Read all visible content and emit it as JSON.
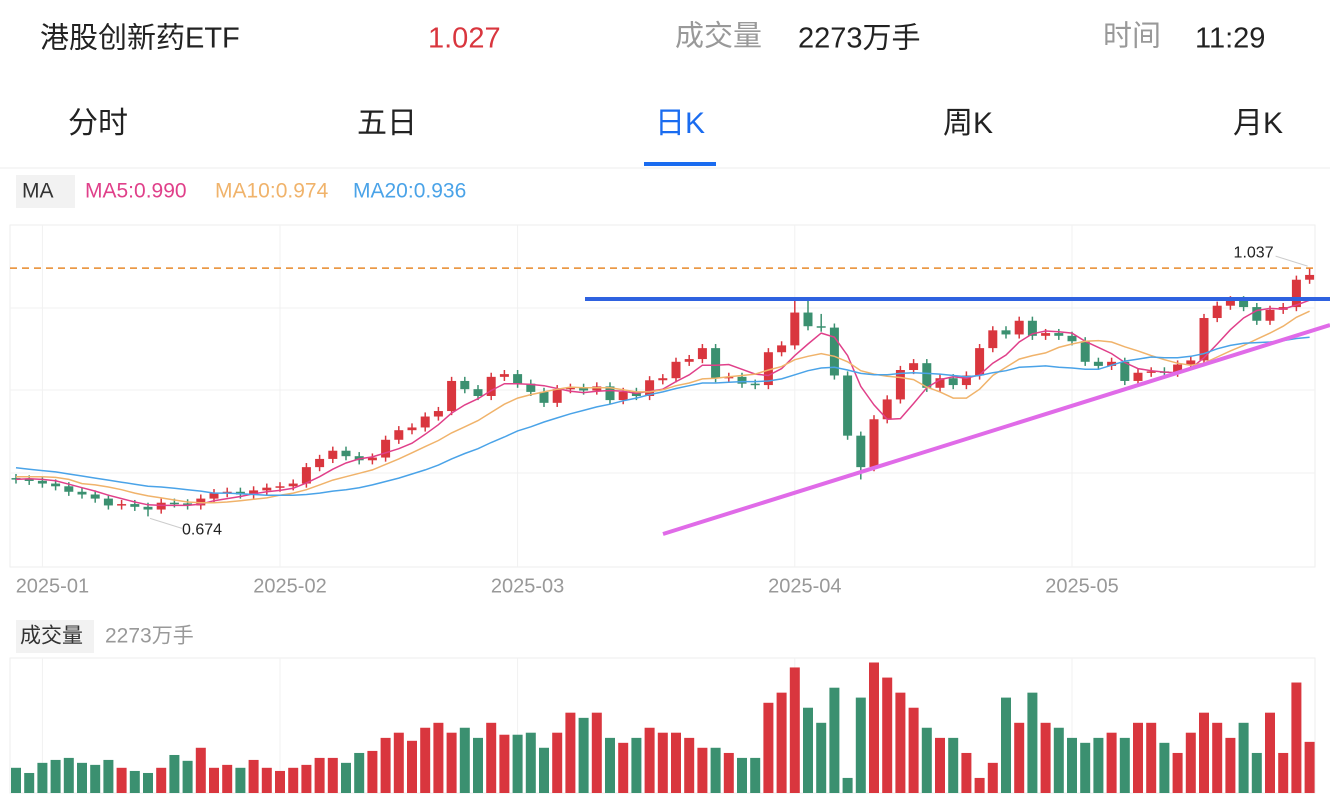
{
  "header": {
    "name": "港股创新药ETF",
    "price": "1.027",
    "volume_label": "成交量",
    "volume": "2273万手",
    "time_label": "时间",
    "time": "11:29"
  },
  "tabs": [
    "分时",
    "五日",
    "日K",
    "周K",
    "月K"
  ],
  "chart_data": [
    {
      "type": "candlestick",
      "legend_label": "MA",
      "categories": [
        null,
        null,
        "2025-01",
        null,
        null,
        null,
        null,
        null,
        null,
        null,
        null,
        null,
        null,
        null,
        null,
        null,
        null,
        null,
        null,
        null,
        "2025-02",
        null,
        null,
        null,
        null,
        null,
        null,
        null,
        null,
        null,
        null,
        null,
        null,
        null,
        null,
        null,
        null,
        null,
        "2025-03",
        null,
        null,
        null,
        null,
        null,
        null,
        null,
        null,
        null,
        null,
        null,
        null,
        null,
        null,
        null,
        null,
        null,
        null,
        null,
        null,
        "2025-04",
        null,
        null,
        null,
        null,
        null,
        null,
        null,
        null,
        null,
        null,
        null,
        null,
        null,
        null,
        null,
        null,
        null,
        null,
        null,
        null,
        "2025-05",
        null,
        null,
        null,
        null,
        null,
        null,
        null,
        null,
        null,
        null,
        null,
        null,
        null,
        null,
        null,
        null,
        null,
        null
      ],
      "open": [
        0.73,
        0.728,
        0.726,
        0.722,
        0.718,
        0.71,
        0.706,
        0.7,
        0.69,
        0.692,
        0.688,
        0.684,
        0.694,
        0.693,
        0.69,
        0.7,
        0.708,
        0.71,
        0.706,
        0.712,
        0.716,
        0.718,
        0.722,
        0.746,
        0.758,
        0.77,
        0.762,
        0.756,
        0.76,
        0.786,
        0.8,
        0.804,
        0.82,
        0.828,
        0.872,
        0.86,
        0.85,
        0.878,
        0.882,
        0.868,
        0.856,
        0.84,
        0.86,
        0.862,
        0.858,
        0.864,
        0.844,
        0.856,
        0.85,
        0.873,
        0.876,
        0.9,
        0.904,
        0.92,
        0.876,
        0.878,
        0.868,
        0.866,
        0.914,
        0.924,
        0.972,
        0.952,
        0.95,
        0.88,
        0.792,
        0.746,
        0.816,
        0.845,
        0.888,
        0.898,
        0.862,
        0.876,
        0.866,
        0.88,
        0.92,
        0.946,
        0.94,
        0.96,
        0.938,
        0.942,
        0.938,
        0.93,
        0.9,
        0.894,
        0.9,
        0.872,
        0.884,
        0.886,
        0.884,
        0.896,
        0.902,
        0.964,
        0.982,
        0.99,
        0.98,
        0.96,
        0.976,
        0.98,
        1.02
      ],
      "high": [
        0.736,
        0.734,
        0.732,
        0.728,
        0.724,
        0.716,
        0.712,
        0.706,
        0.698,
        0.698,
        0.694,
        0.7,
        0.7,
        0.699,
        0.706,
        0.714,
        0.716,
        0.716,
        0.718,
        0.722,
        0.724,
        0.728,
        0.752,
        0.764,
        0.776,
        0.776,
        0.768,
        0.766,
        0.792,
        0.806,
        0.81,
        0.826,
        0.834,
        0.878,
        0.878,
        0.866,
        0.884,
        0.888,
        0.888,
        0.874,
        0.862,
        0.866,
        0.868,
        0.868,
        0.87,
        0.87,
        0.862,
        0.862,
        0.879,
        0.882,
        0.906,
        0.91,
        0.926,
        0.926,
        0.884,
        0.884,
        0.874,
        0.92,
        0.93,
        0.992,
        0.99,
        0.97,
        0.956,
        0.886,
        0.798,
        0.822,
        0.851,
        0.894,
        0.904,
        0.904,
        0.882,
        0.882,
        0.886,
        0.926,
        0.952,
        0.952,
        0.966,
        0.966,
        0.948,
        0.948,
        0.944,
        0.936,
        0.906,
        0.906,
        0.906,
        0.89,
        0.892,
        0.892,
        0.902,
        0.908,
        0.97,
        0.988,
        0.996,
        0.996,
        0.986,
        0.982,
        0.986,
        1.026,
        1.037
      ],
      "low": [
        0.722,
        0.72,
        0.716,
        0.712,
        0.704,
        0.7,
        0.694,
        0.684,
        0.684,
        0.682,
        0.674,
        0.678,
        0.687,
        0.684,
        0.684,
        0.694,
        0.702,
        0.7,
        0.7,
        0.706,
        0.71,
        0.712,
        0.716,
        0.74,
        0.752,
        0.756,
        0.75,
        0.75,
        0.754,
        0.78,
        0.794,
        0.798,
        0.814,
        0.822,
        0.854,
        0.844,
        0.844,
        0.872,
        0.862,
        0.85,
        0.834,
        0.834,
        0.854,
        0.852,
        0.852,
        0.838,
        0.838,
        0.844,
        0.844,
        0.867,
        0.87,
        0.894,
        0.898,
        0.87,
        0.87,
        0.862,
        0.86,
        0.86,
        0.908,
        0.918,
        0.946,
        0.944,
        0.874,
        0.786,
        0.728,
        0.74,
        0.81,
        0.839,
        0.882,
        0.856,
        0.856,
        0.86,
        0.86,
        0.874,
        0.914,
        0.934,
        0.934,
        0.932,
        0.932,
        0.932,
        0.924,
        0.894,
        0.888,
        0.888,
        0.866,
        0.866,
        0.878,
        0.878,
        0.878,
        0.89,
        0.896,
        0.958,
        0.976,
        0.974,
        0.954,
        0.954,
        0.97,
        0.974,
        1.014
      ],
      "close": [
        0.728,
        0.726,
        0.722,
        0.718,
        0.71,
        0.706,
        0.7,
        0.69,
        0.692,
        0.688,
        0.684,
        0.694,
        0.693,
        0.69,
        0.7,
        0.708,
        0.71,
        0.706,
        0.712,
        0.716,
        0.718,
        0.722,
        0.746,
        0.758,
        0.77,
        0.762,
        0.756,
        0.76,
        0.786,
        0.8,
        0.804,
        0.82,
        0.828,
        0.872,
        0.86,
        0.85,
        0.878,
        0.882,
        0.868,
        0.856,
        0.84,
        0.86,
        0.862,
        0.858,
        0.864,
        0.844,
        0.856,
        0.85,
        0.873,
        0.876,
        0.9,
        0.904,
        0.92,
        0.876,
        0.878,
        0.868,
        0.866,
        0.914,
        0.924,
        0.972,
        0.952,
        0.95,
        0.88,
        0.792,
        0.746,
        0.816,
        0.845,
        0.888,
        0.898,
        0.862,
        0.876,
        0.866,
        0.88,
        0.92,
        0.946,
        0.94,
        0.96,
        0.938,
        0.942,
        0.938,
        0.93,
        0.9,
        0.894,
        0.9,
        0.872,
        0.884,
        0.886,
        0.884,
        0.896,
        0.902,
        0.964,
        0.982,
        0.99,
        0.98,
        0.96,
        0.976,
        0.98,
        1.02,
        1.027
      ],
      "up_color": "#d9363e",
      "down_color": "#3b9070",
      "series": [
        {
          "name": "MA5:0.990",
          "color": "#e0408a",
          "values": [
            0.728,
            0.729,
            0.728,
            0.726,
            0.721,
            0.716,
            0.711,
            0.705,
            0.7,
            0.695,
            0.691,
            0.69,
            0.69,
            0.69,
            0.692,
            0.697,
            0.7,
            0.703,
            0.707,
            0.71,
            0.712,
            0.715,
            0.723,
            0.732,
            0.743,
            0.752,
            0.758,
            0.761,
            0.767,
            0.773,
            0.781,
            0.794,
            0.808,
            0.825,
            0.837,
            0.846,
            0.858,
            0.868,
            0.868,
            0.867,
            0.865,
            0.861,
            0.857,
            0.855,
            0.857,
            0.858,
            0.857,
            0.854,
            0.857,
            0.86,
            0.871,
            0.881,
            0.895,
            0.895,
            0.896,
            0.889,
            0.882,
            0.88,
            0.89,
            0.909,
            0.926,
            0.942,
            0.936,
            0.909,
            0.864,
            0.837,
            0.816,
            0.817,
            0.839,
            0.862,
            0.874,
            0.878,
            0.876,
            0.881,
            0.898,
            0.91,
            0.929,
            0.941,
            0.945,
            0.944,
            0.942,
            0.93,
            0.921,
            0.912,
            0.899,
            0.89,
            0.887,
            0.885,
            0.884,
            0.89,
            0.906,
            0.926,
            0.947,
            0.964,
            0.975,
            0.978,
            0.977,
            0.983,
            0.99
          ]
        },
        {
          "name": "MA10:0.974",
          "color": "#f0b36b",
          "values": [
            0.732,
            0.732,
            0.732,
            0.731,
            0.728,
            0.722,
            0.72,
            0.717,
            0.713,
            0.708,
            0.704,
            0.701,
            0.698,
            0.695,
            0.694,
            0.694,
            0.695,
            0.697,
            0.699,
            0.701,
            0.705,
            0.708,
            0.713,
            0.72,
            0.727,
            0.732,
            0.737,
            0.742,
            0.75,
            0.758,
            0.767,
            0.776,
            0.785,
            0.796,
            0.805,
            0.814,
            0.826,
            0.838,
            0.847,
            0.852,
            0.856,
            0.86,
            0.863,
            0.862,
            0.862,
            0.862,
            0.859,
            0.856,
            0.856,
            0.859,
            0.865,
            0.869,
            0.875,
            0.876,
            0.878,
            0.88,
            0.882,
            0.888,
            0.893,
            0.903,
            0.908,
            0.912,
            0.908,
            0.9,
            0.887,
            0.882,
            0.879,
            0.877,
            0.874,
            0.863,
            0.856,
            0.847,
            0.847,
            0.86,
            0.88,
            0.892,
            0.904,
            0.909,
            0.913,
            0.921,
            0.926,
            0.93,
            0.931,
            0.929,
            0.922,
            0.916,
            0.909,
            0.903,
            0.898,
            0.895,
            0.898,
            0.907,
            0.916,
            0.924,
            0.933,
            0.942,
            0.952,
            0.965,
            0.974
          ]
        },
        {
          "name": "MA20:0.936",
          "color": "#4aa3e8",
          "values": [
            0.745,
            0.743,
            0.741,
            0.739,
            0.736,
            0.733,
            0.73,
            0.727,
            0.724,
            0.721,
            0.718,
            0.717,
            0.715,
            0.713,
            0.711,
            0.708,
            0.708,
            0.707,
            0.706,
            0.705,
            0.705,
            0.705,
            0.706,
            0.708,
            0.711,
            0.713,
            0.716,
            0.72,
            0.725,
            0.73,
            0.736,
            0.742,
            0.749,
            0.758,
            0.766,
            0.773,
            0.782,
            0.79,
            0.799,
            0.805,
            0.812,
            0.818,
            0.824,
            0.829,
            0.834,
            0.838,
            0.843,
            0.847,
            0.852,
            0.856,
            0.861,
            0.865,
            0.869,
            0.869,
            0.87,
            0.871,
            0.871,
            0.872,
            0.875,
            0.881,
            0.887,
            0.891,
            0.892,
            0.888,
            0.883,
            0.881,
            0.881,
            0.883,
            0.884,
            0.883,
            0.882,
            0.88,
            0.878,
            0.88,
            0.884,
            0.887,
            0.892,
            0.893,
            0.894,
            0.892,
            0.891,
            0.889,
            0.889,
            0.895,
            0.901,
            0.904,
            0.907,
            0.906,
            0.906,
            0.908,
            0.912,
            0.919,
            0.924,
            0.927,
            0.928,
            0.929,
            0.931,
            0.934,
            0.936
          ]
        }
      ],
      "high_label": "1.037",
      "low_label": "0.674",
      "ylim": [
        0.6,
        1.1
      ]
    },
    {
      "type": "bar",
      "title": "成交量",
      "subtitle": "2273万手",
      "values": [
        1120,
        890,
        1340,
        1470,
        1560,
        1340,
        1250,
        1470,
        1120,
        980,
        890,
        1120,
        1690,
        1430,
        2010,
        1120,
        1250,
        1120,
        1470,
        1120,
        980,
        1120,
        1250,
        1560,
        1560,
        1340,
        1780,
        1870,
        2450,
        2680,
        2320,
        2900,
        3120,
        2680,
        2900,
        2450,
        3120,
        2590,
        2590,
        2680,
        2010,
        2680,
        3570,
        3340,
        3570,
        2450,
        2230,
        2450,
        2900,
        2680,
        2680,
        2450,
        2010,
        2010,
        1780,
        1560,
        1560,
        4010,
        4460,
        5580,
        3790,
        3120,
        4680,
        670,
        4240,
        5800,
        5130,
        4460,
        3790,
        2900,
        2450,
        2450,
        1780,
        670,
        1340,
        4240,
        3120,
        4460,
        3120,
        2900,
        2450,
        2230,
        2450,
        2680,
        2450,
        3120,
        3120,
        2230,
        1780,
        2680,
        3570,
        3120,
        2450,
        3120,
        1780,
        3570,
        1780,
        4910,
        2273
      ],
      "ylim": [
        0,
        6000
      ]
    }
  ]
}
